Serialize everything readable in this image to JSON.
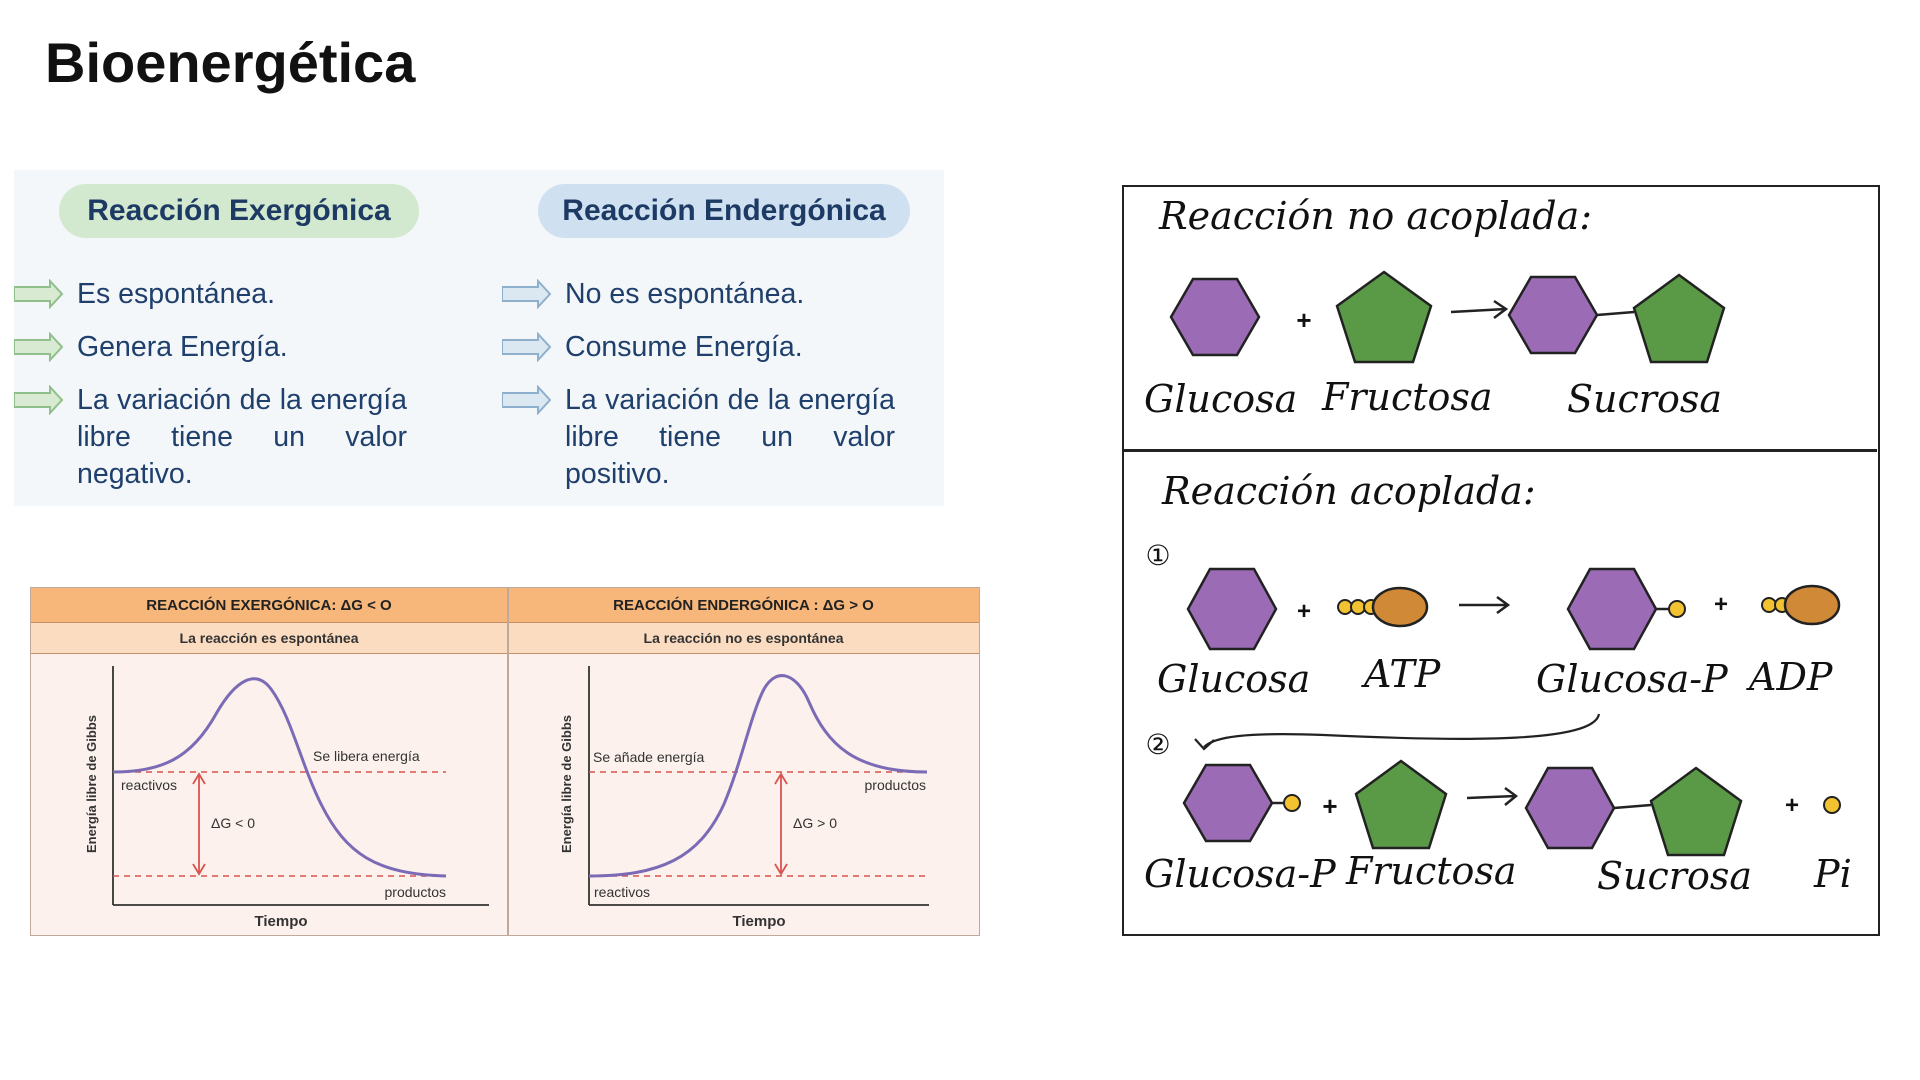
{
  "title": "Bioenergética",
  "exergonic": {
    "heading": "Reacción Exergónica",
    "bullets": [
      "Es espontánea.",
      "Genera Energía.",
      "La variación de la energía libre tiene un valor negativo."
    ]
  },
  "endergonic": {
    "heading": "Reacción Endergónica",
    "bullets": [
      "No es espontánea.",
      "Consume Energía.",
      "La variación de la energía libre tiene un valor positivo."
    ]
  },
  "energy_charts": {
    "left": {
      "header": "REACCIÓN EXERGÓNICA: ΔG < O",
      "subheader": "La reacción es espontánea",
      "ylabel": "Energía libre de Gibbs",
      "xlabel": "Tiempo",
      "reactants_label": "reactivos",
      "products_label": "productos",
      "energy_label": "Se libera energía",
      "delta_label": "ΔG < 0"
    },
    "right": {
      "header": "REACCIÓN ENDERGÓNICA : ΔG > O",
      "subheader": "La reacción no es espontánea",
      "ylabel": "Energía libre de Gibbs",
      "xlabel": "Tiempo",
      "reactants_label": "reactivos",
      "products_label": "productos",
      "energy_label": "Se añade energía",
      "delta_label": "ΔG > 0"
    }
  },
  "coupling": {
    "uncoupled_title": "Reacción no acoplada:",
    "coupled_title": "Reacción acoplada:",
    "step1_marker": "①",
    "step2_marker": "②",
    "row1_labels": [
      "Glucosa",
      "Fructosa",
      "Sucrosa"
    ],
    "row2_labels": [
      "Glucosa",
      "ATP",
      "Glucosa-P",
      "ADP"
    ],
    "row3_labels": [
      "Glucosa-P",
      "Fructosa",
      "Sucrosa",
      "Pi"
    ],
    "plus": "+",
    "colors": {
      "hexagon": "#9b6bb5",
      "pentagon": "#5a9a47",
      "phosphate": "#f2c230",
      "adenosine": "#d08a37"
    }
  },
  "colors": {
    "heading_text": "#1d3a64",
    "green_pill": "#d3e9cf",
    "blue_pill": "#cfe1f1",
    "chart_header": "#f7b77a",
    "chart_subheader": "#fbdcc0",
    "chart_background": "#fcf1ec",
    "curve": "#7b6bb6",
    "dashed_level": "#d9534f"
  }
}
